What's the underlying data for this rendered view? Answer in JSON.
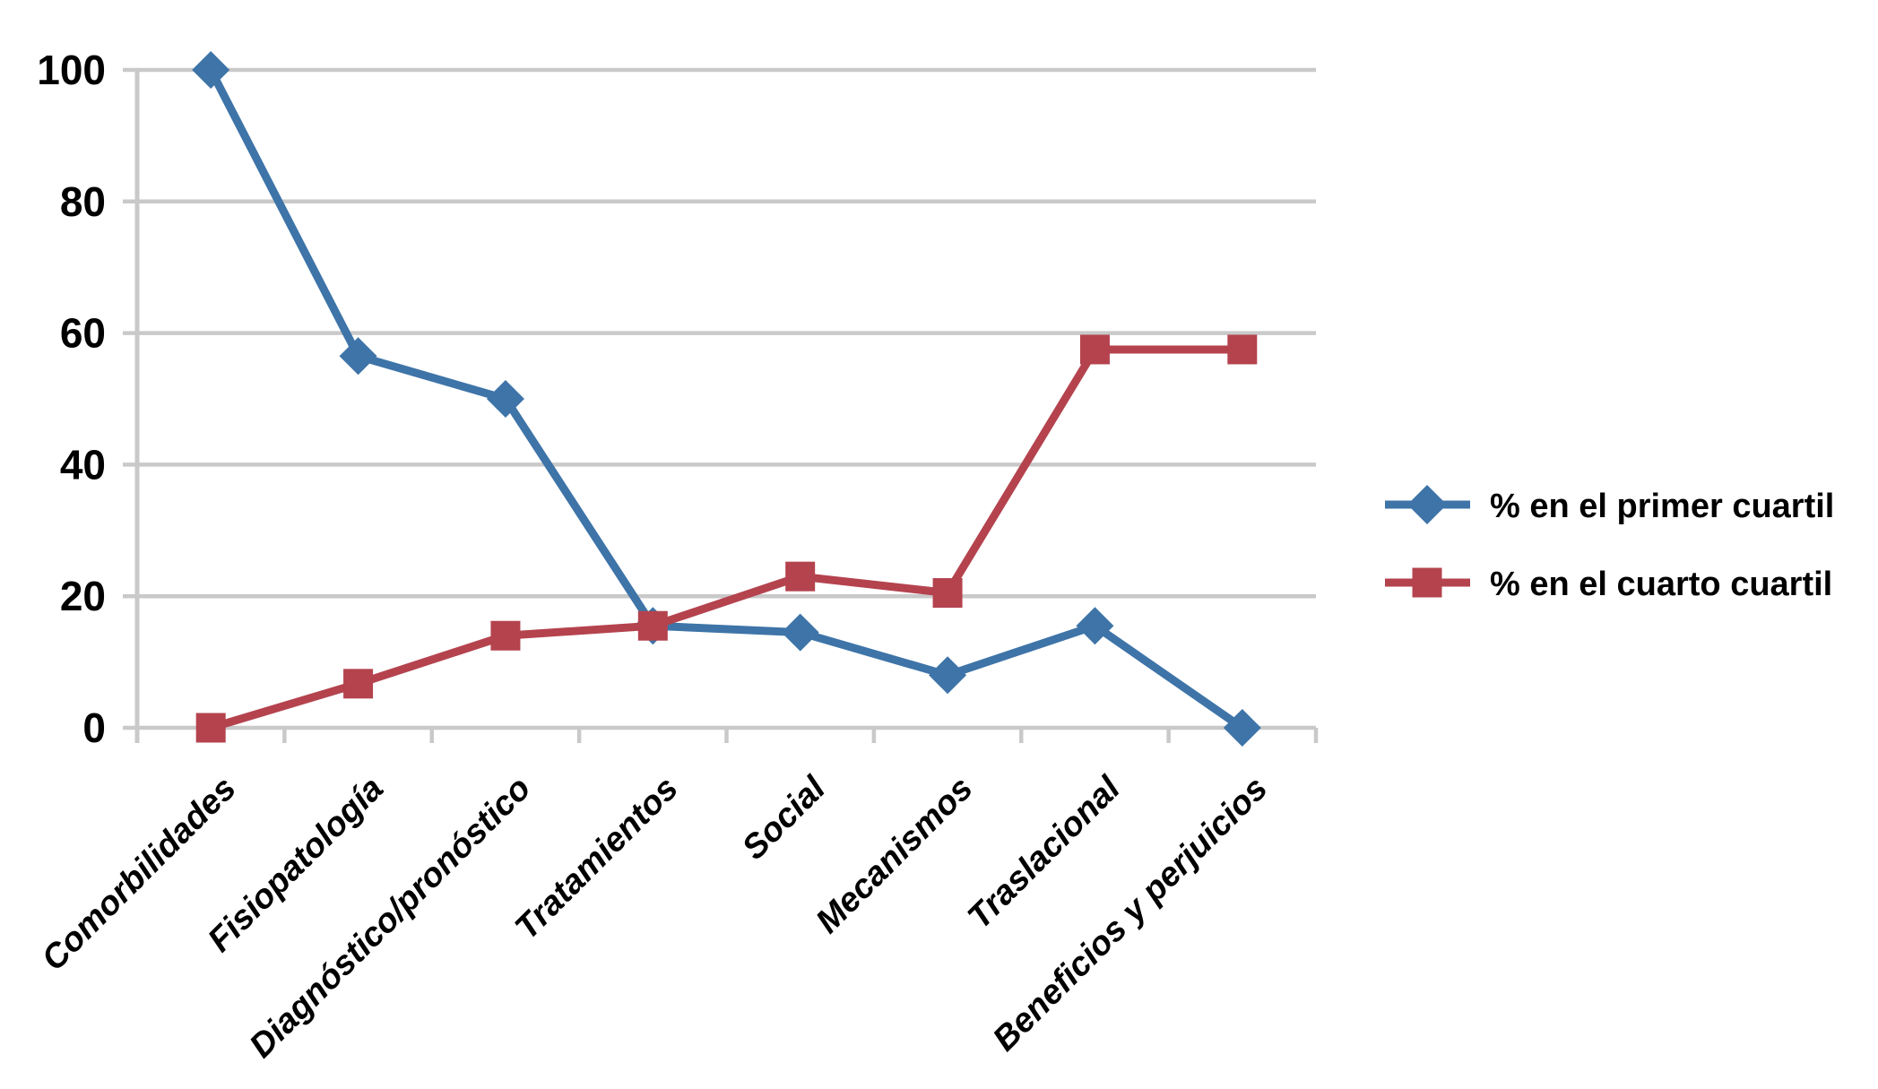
{
  "chart_data": {
    "type": "line",
    "categories": [
      "Comorbilidades",
      "Fisiopatología",
      "Diagnóstico/pronóstico",
      "Tratamientos",
      "Social",
      "Mecanismos",
      "Traslacional",
      "Beneficios y perjuicios"
    ],
    "series": [
      {
        "name": "% en el primer cuartil",
        "marker": "diamond",
        "color": "#3E74A8",
        "values": [
          100,
          56.5,
          50,
          15.5,
          14.5,
          8,
          15.5,
          0
        ]
      },
      {
        "name": "% en el cuarto cuartil",
        "marker": "square",
        "color": "#B4434E",
        "values": [
          0,
          6.7,
          14,
          15.5,
          23,
          20.5,
          57.5,
          57.5
        ]
      }
    ],
    "yticks": [
      0,
      20,
      40,
      60,
      80,
      100
    ],
    "ylim": [
      0,
      100
    ],
    "grid": true,
    "grid_color": "#C9C9C9",
    "text_color": "#000000",
    "background": "#FFFFFF",
    "legend_position": "right",
    "title": "",
    "xlabel": "",
    "ylabel": ""
  }
}
